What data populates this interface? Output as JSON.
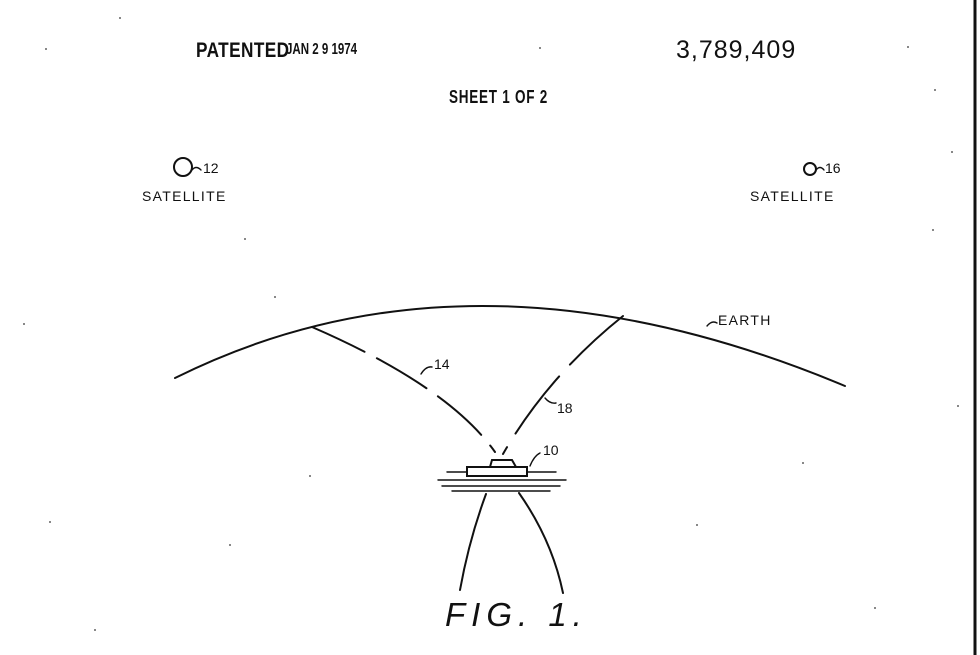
{
  "header": {
    "patented": "PATENTED",
    "date": "JAN 2 9 1974",
    "patent_number": "3,789,409",
    "sheet": "SHEET 1 OF 2"
  },
  "satellites": [
    {
      "ref": "12",
      "label": "SATELLITE"
    },
    {
      "ref": "16",
      "label": "SATELLITE"
    }
  ],
  "earth_label": "EARTH",
  "path_refs": [
    "14",
    "18"
  ],
  "vessel_ref": "10",
  "figure_caption": "FIG. 1."
}
